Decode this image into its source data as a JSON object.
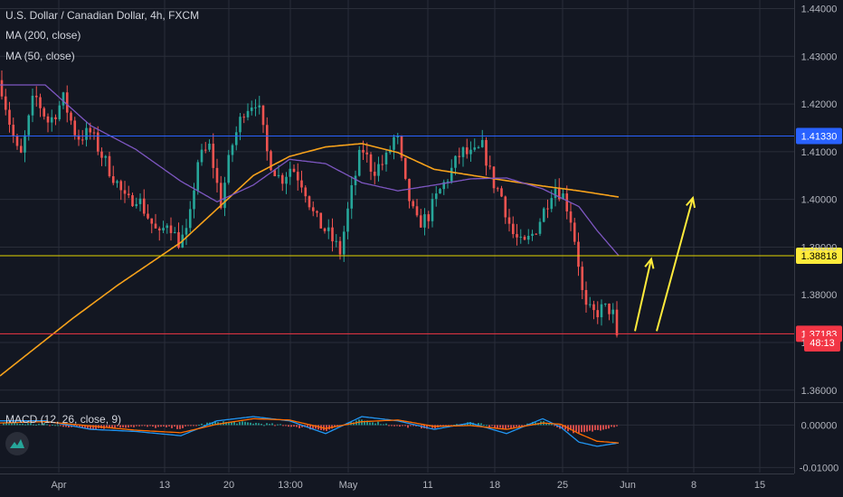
{
  "chart_data": {
    "type": "candlestick",
    "title": "U.S. Dollar / Canadian Dollar, 4h, FXCM",
    "indicators": {
      "ma200_label": "MA (200, close)",
      "ma50_label": "MA (50, close)",
      "macd_label": "MACD (12, 26, close, 9)"
    },
    "x_ticks": [
      "Apr",
      "13",
      "20",
      "13:00",
      "May",
      "11",
      "18",
      "25",
      "Jun",
      "8",
      "15"
    ],
    "y_ticks": [
      "1.44000",
      "1.43000",
      "1.42000",
      "1.41000",
      "1.40000",
      "1.39000",
      "1.38000",
      "1.37000",
      "1.36000"
    ],
    "macd_y_ticks": [
      "0.00000",
      "-0.01000"
    ],
    "ylim": [
      1.3575,
      1.4418
    ],
    "macd_ylim": [
      -0.0112,
      0.0052
    ],
    "price_levels": [
      {
        "value": 1.4133,
        "label": "1.41330",
        "color": "#2962ff",
        "label_bg": "#2962ff",
        "label_color": "#ffffff"
      },
      {
        "value": 1.38818,
        "label": "1.38818",
        "color": "#e3d400",
        "label_bg": "#ffeb3b",
        "label_color": "#000000"
      },
      {
        "value": 1.37183,
        "label": "1.37183",
        "color": "#f23645",
        "label_bg": "#f23645",
        "label_color": "#ffffff"
      }
    ],
    "countdown": "48:13",
    "close_anchors": [
      [
        0,
        1.425
      ],
      [
        12,
        1.415
      ],
      [
        22,
        1.408
      ],
      [
        38,
        1.422
      ],
      [
        54,
        1.416
      ],
      [
        70,
        1.421
      ],
      [
        85,
        1.413
      ],
      [
        100,
        1.414
      ],
      [
        116,
        1.408
      ],
      [
        128,
        1.404
      ],
      [
        140,
        1.399
      ],
      [
        150,
        1.401
      ],
      [
        162,
        1.397
      ],
      [
        176,
        1.392
      ],
      [
        186,
        1.396
      ],
      [
        196,
        1.391
      ],
      [
        208,
        1.393
      ],
      [
        218,
        1.408
      ],
      [
        232,
        1.411
      ],
      [
        244,
        1.399
      ],
      [
        256,
        1.411
      ],
      [
        270,
        1.419
      ],
      [
        284,
        1.421
      ],
      [
        296,
        1.409
      ],
      [
        310,
        1.404
      ],
      [
        322,
        1.407
      ],
      [
        336,
        1.403
      ],
      [
        348,
        1.396
      ],
      [
        362,
        1.393
      ],
      [
        376,
        1.389
      ],
      [
        388,
        1.401
      ],
      [
        400,
        1.411
      ],
      [
        412,
        1.406
      ],
      [
        426,
        1.408
      ],
      [
        438,
        1.414
      ],
      [
        448,
        1.403
      ],
      [
        460,
        1.395
      ],
      [
        472,
        1.396
      ],
      [
        484,
        1.401
      ],
      [
        496,
        1.405
      ],
      [
        510,
        1.41
      ],
      [
        522,
        1.409
      ],
      [
        534,
        1.411
      ],
      [
        544,
        1.404
      ],
      [
        554,
        1.401
      ],
      [
        566,
        1.393
      ],
      [
        578,
        1.39
      ],
      [
        590,
        1.393
      ],
      [
        600,
        1.397
      ],
      [
        612,
        1.403
      ],
      [
        622,
        1.401
      ],
      [
        630,
        1.397
      ],
      [
        638,
        1.389
      ],
      [
        646,
        1.377
      ],
      [
        656,
        1.376
      ],
      [
        666,
        1.377
      ],
      [
        676,
        1.377
      ],
      [
        684,
        1.3715
      ]
    ],
    "ma200_anchors": [
      [
        0,
        1.363
      ],
      [
        40,
        1.369
      ],
      [
        80,
        1.375
      ],
      [
        130,
        1.382
      ],
      [
        200,
        1.391
      ],
      [
        240,
        1.398
      ],
      [
        280,
        1.405
      ],
      [
        320,
        1.409
      ],
      [
        360,
        1.411
      ],
      [
        400,
        1.4117
      ],
      [
        440,
        1.4098
      ],
      [
        480,
        1.4063
      ],
      [
        540,
        1.4045
      ],
      [
        600,
        1.4028
      ],
      [
        640,
        1.4018
      ],
      [
        684,
        1.4005
      ]
    ],
    "ma50_anchors": [
      [
        0,
        1.424
      ],
      [
        50,
        1.424
      ],
      [
        100,
        1.4155
      ],
      [
        150,
        1.4105
      ],
      [
        200,
        1.4038
      ],
      [
        240,
        1.3995
      ],
      [
        280,
        1.403
      ],
      [
        320,
        1.4084
      ],
      [
        360,
        1.4075
      ],
      [
        400,
        1.4035
      ],
      [
        440,
        1.4018
      ],
      [
        480,
        1.403
      ],
      [
        520,
        1.4043
      ],
      [
        560,
        1.4045
      ],
      [
        600,
        1.4022
      ],
      [
        640,
        1.3985
      ],
      [
        660,
        1.3935
      ],
      [
        684,
        1.3882
      ]
    ],
    "macd_line_anchors": [
      [
        0,
        0.001
      ],
      [
        50,
        0.001
      ],
      [
        100,
        -0.001
      ],
      [
        150,
        -0.0015
      ],
      [
        200,
        -0.0025
      ],
      [
        240,
        0.001
      ],
      [
        280,
        0.002
      ],
      [
        320,
        0.001
      ],
      [
        360,
        -0.002
      ],
      [
        400,
        0.002
      ],
      [
        440,
        0.001
      ],
      [
        480,
        -0.001
      ],
      [
        520,
        0.0005
      ],
      [
        560,
        -0.002
      ],
      [
        600,
        0.0015
      ],
      [
        620,
        -0.0005
      ],
      [
        640,
        -0.004
      ],
      [
        660,
        -0.005
      ],
      [
        684,
        -0.0042
      ]
    ],
    "macd_signal_anchors": [
      [
        0,
        0.0005
      ],
      [
        50,
        0.0008
      ],
      [
        100,
        -0.0002
      ],
      [
        150,
        -0.0012
      ],
      [
        200,
        -0.0018
      ],
      [
        240,
        0.0002
      ],
      [
        280,
        0.0015
      ],
      [
        320,
        0.0012
      ],
      [
        360,
        -0.0008
      ],
      [
        400,
        0.0008
      ],
      [
        440,
        0.0012
      ],
      [
        480,
        -0.0003
      ],
      [
        520,
        -0.0001
      ],
      [
        560,
        -0.001
      ],
      [
        600,
        0.0005
      ],
      [
        620,
        0.0002
      ],
      [
        640,
        -0.002
      ],
      [
        660,
        -0.0038
      ],
      [
        684,
        -0.0042
      ]
    ],
    "annotations": [
      {
        "type": "arrow",
        "from": [
          702,
          1.3724
        ],
        "to": [
          720,
          1.3875
        ],
        "color": "#ffeb3b"
      },
      {
        "type": "arrow",
        "from": [
          726,
          1.3724
        ],
        "to": [
          766,
          1.4003
        ],
        "color": "#ffeb3b"
      }
    ],
    "colors": {
      "bg": "#131722",
      "up": "#26a69a",
      "down": "#ef5350",
      "ma200": "#f7a21b",
      "ma50": "#7e57c2",
      "macd": "#2196f3",
      "signal": "#ff6d00",
      "grid": "#2a2e39",
      "axis_text": "#b2b5be"
    }
  }
}
